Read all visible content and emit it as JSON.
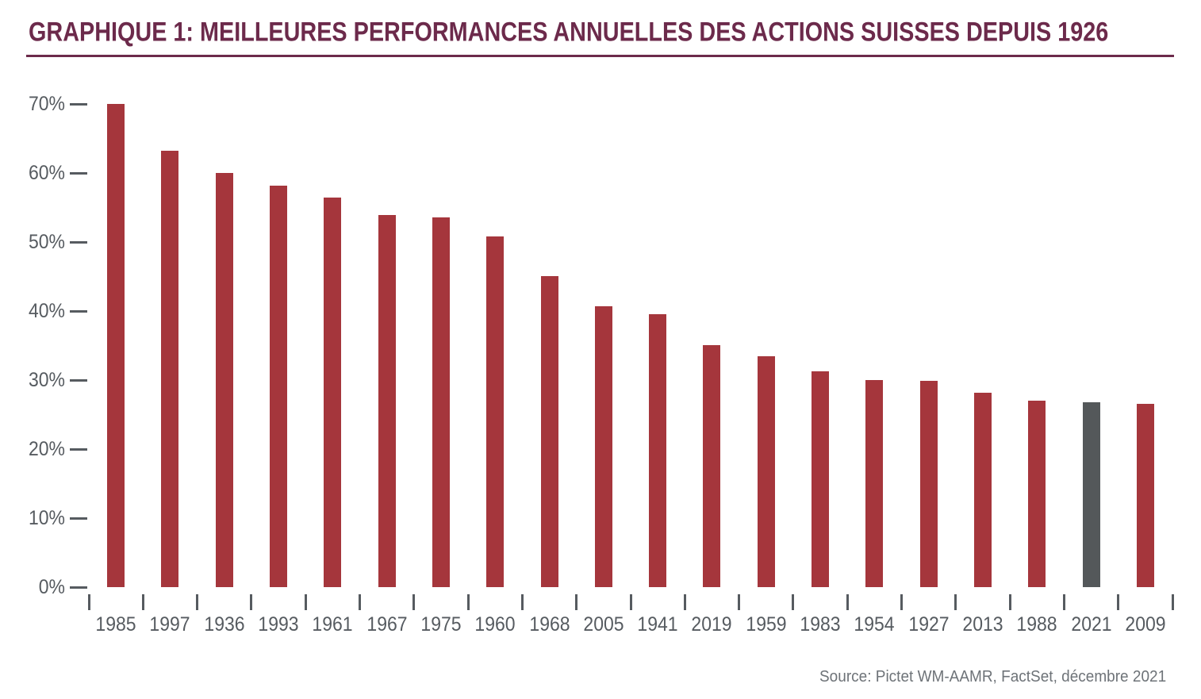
{
  "title": "GRAPHIQUE 1: MEILLEURES PERFORMANCES ANNUELLES DES ACTIONS SUISSES DEPUIS 1926",
  "source": "Source: Pictet WM-AAMR, FactSet, décembre 2021",
  "colors": {
    "title": "#6C2A4B",
    "rule": "#6C2A4B",
    "bar": "#A5363C",
    "highlight_bar": "#54585A",
    "axis_text": "#565B60",
    "source_text": "#6E7378",
    "background": "#FFFFFF"
  },
  "chart_data": {
    "type": "bar",
    "title": "GRAPHIQUE 1: MEILLEURES PERFORMANCES ANNUELLES DES ACTIONS SUISSES DEPUIS 1926",
    "categories": [
      "1985",
      "1997",
      "1936",
      "1993",
      "1961",
      "1967",
      "1975",
      "1960",
      "1968",
      "2005",
      "1941",
      "2019",
      "1959",
      "1983",
      "1954",
      "1927",
      "2013",
      "1988",
      "2021",
      "2009"
    ],
    "values": [
      70.0,
      63.2,
      60.0,
      58.2,
      56.4,
      53.9,
      53.6,
      50.8,
      45.1,
      40.7,
      39.5,
      35.1,
      33.4,
      31.3,
      30.0,
      29.9,
      28.2,
      27.0,
      26.8,
      26.6
    ],
    "unit": "%",
    "highlighted_category": "2021",
    "bar_color": "#A5363C",
    "highlight_color": "#54585A",
    "xlabel": "",
    "ylabel": "",
    "ylim": [
      0,
      70
    ],
    "ytick_step": 10,
    "ytick_labels": [
      "0%",
      "10%",
      "20%",
      "30%",
      "40%",
      "50%",
      "60%",
      "70%"
    ],
    "grid": false,
    "legend_position": "none",
    "source": "Source: Pictet WM-AAMR, FactSet, décembre 2021"
  }
}
